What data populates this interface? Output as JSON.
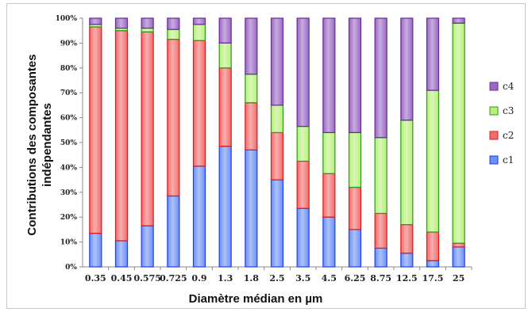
{
  "chart_data": {
    "type": "bar",
    "stacked": "percent",
    "xlabel": "Diamètre médian en µm",
    "ylabel": [
      "Contributions des composantes",
      "indépendantes"
    ],
    "categories": [
      "0.35",
      "0.45",
      "0.575",
      "0.725",
      "0.9",
      "1.3",
      "1.8",
      "2.5",
      "3.5",
      "4.5",
      "6.25",
      "8.75",
      "12.5",
      "17.5",
      "25"
    ],
    "ylim": [
      0,
      100
    ],
    "yticks": [
      "0%",
      "10%",
      "20%",
      "30%",
      "40%",
      "50%",
      "60%",
      "70%",
      "80%",
      "90%",
      "100%"
    ],
    "grid": false,
    "legend_position": "right",
    "series": [
      {
        "name": "c1",
        "color": "#6b8ff5",
        "values": [
          13.5,
          10.5,
          16.5,
          28.5,
          40.5,
          48.5,
          47,
          35,
          23.5,
          20,
          15,
          7.5,
          5.5,
          2.5,
          8
        ]
      },
      {
        "name": "c2",
        "color": "#f26b6b",
        "values": [
          83,
          84.5,
          78,
          63,
          50.5,
          31.5,
          19,
          19,
          19,
          17.5,
          17,
          14,
          11.5,
          11.5,
          1.5
        ]
      },
      {
        "name": "c3",
        "color": "#b8f07a",
        "values": [
          1,
          1,
          1.5,
          4,
          6.5,
          10,
          11.5,
          11,
          14,
          16.5,
          22,
          30.5,
          42,
          57,
          88.5
        ]
      },
      {
        "name": "c4",
        "color": "#9a68c4",
        "values": [
          2.5,
          4,
          4,
          4.5,
          2.5,
          10,
          22.5,
          35,
          43.5,
          46,
          46,
          48,
          41,
          29,
          2
        ]
      }
    ],
    "series_border_colors": {
      "c1": "#1e3ef0",
      "c2": "#e01818",
      "c3": "#2a9a1c",
      "c4": "#6a2a9a"
    }
  }
}
